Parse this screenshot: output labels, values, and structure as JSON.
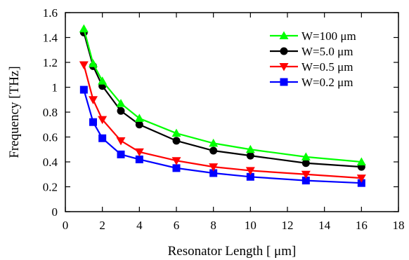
{
  "chart_data": {
    "type": "line",
    "xlabel": "Resonator Length [ μm]",
    "ylabel": "Frequency [THz]",
    "xlim": [
      0,
      18
    ],
    "ylim": [
      0,
      1.6
    ],
    "xticks": [
      0,
      2,
      4,
      6,
      8,
      10,
      12,
      14,
      16,
      18
    ],
    "yticks": [
      0,
      0.2,
      0.4,
      0.6,
      0.8,
      1,
      1.2,
      1.4,
      1.6
    ],
    "xtick_labels": [
      "0",
      "2",
      "4",
      "6",
      "8",
      "10",
      "12",
      "14",
      "16",
      "18"
    ],
    "ytick_labels": [
      "0",
      "0.2",
      "0.4",
      "0.6",
      "0.8",
      "1",
      "1.2",
      "1.4",
      "1.6"
    ],
    "grid": false,
    "legend_position": "top-right",
    "x": [
      1,
      1.5,
      2,
      3,
      4,
      6,
      8,
      10,
      13,
      16
    ],
    "series": [
      {
        "name": "W=100  μm",
        "color": "#00ff00",
        "marker": "triangle-up",
        "values": [
          1.47,
          1.19,
          1.05,
          0.87,
          0.75,
          0.63,
          0.55,
          0.5,
          0.44,
          0.4
        ]
      },
      {
        "name": "W=5.0  μm",
        "color": "#000000",
        "marker": "circle",
        "values": [
          1.44,
          1.17,
          1.01,
          0.81,
          0.7,
          0.57,
          0.49,
          0.45,
          0.39,
          0.36
        ]
      },
      {
        "name": "W=0.5  μm",
        "color": "#ff0000",
        "marker": "triangle-down",
        "values": [
          1.18,
          0.9,
          0.74,
          0.57,
          0.48,
          0.41,
          0.36,
          0.33,
          0.3,
          0.27
        ]
      },
      {
        "name": "W=0.2  μm",
        "color": "#0000ff",
        "marker": "square",
        "values": [
          0.98,
          0.72,
          0.59,
          0.46,
          0.42,
          0.35,
          0.31,
          0.28,
          0.25,
          0.23
        ]
      }
    ]
  }
}
